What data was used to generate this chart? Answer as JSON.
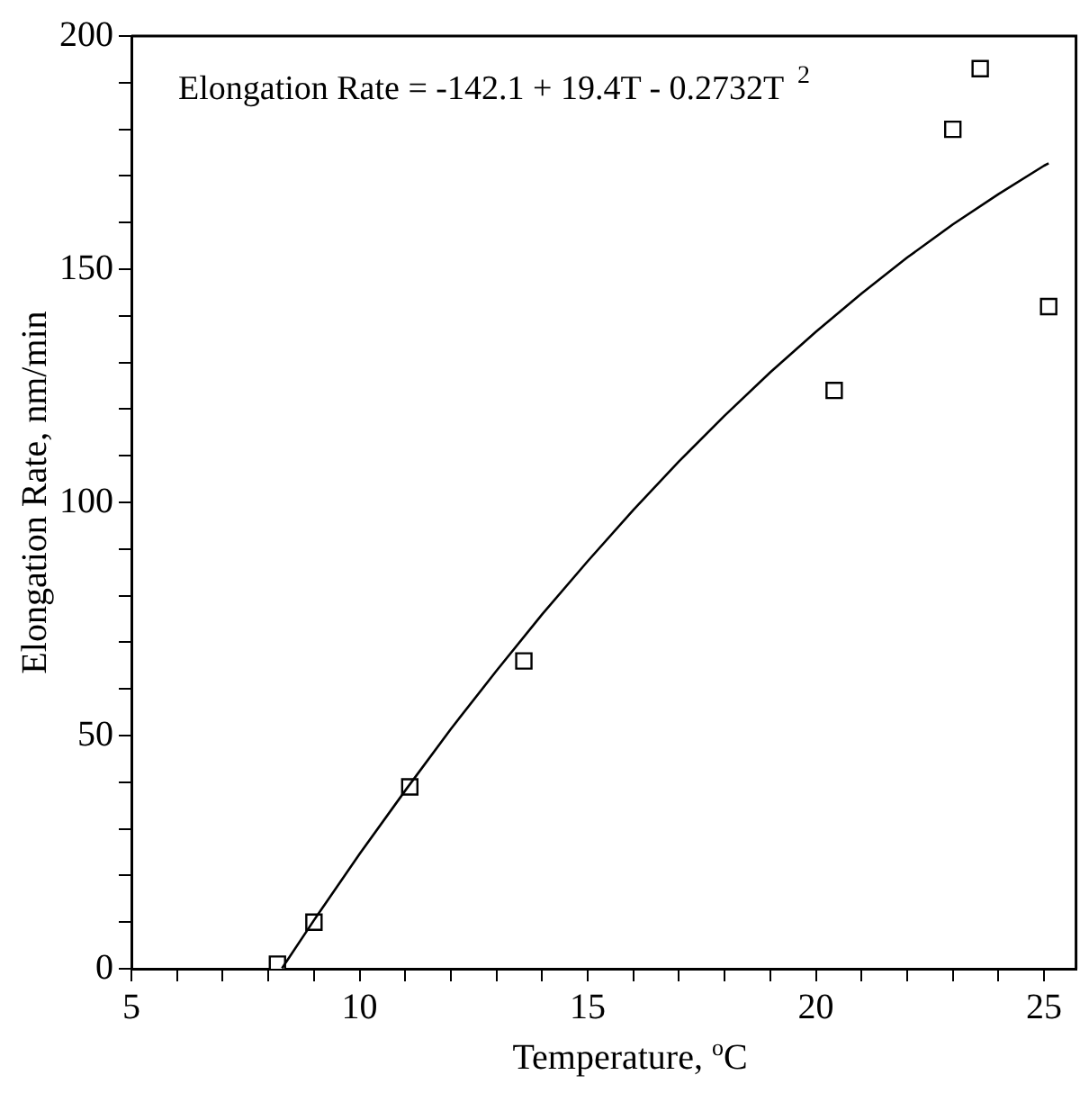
{
  "chart_data": {
    "type": "scatter",
    "xlabel": "Temperature, $^{o}$C",
    "ylabel": "Elongation Rate, nm/min",
    "annotations": [
      "Elongation Rate = -142.1 + 19.4T - 0.2732T$^{2}$"
    ],
    "series": [
      {
        "color": "#000000",
        "marker": "square",
        "x": [
          8.2,
          9.0,
          11.1,
          13.6,
          20.4,
          23.0,
          23.6,
          25.1
        ],
        "values": [
          1,
          10,
          39,
          66,
          124,
          180,
          193,
          142
        ]
      },
      {
        "type": "line",
        "color": "#000000",
        "marker": "none",
        "line_style": "solid",
        "x": [
          8.3,
          9,
          10,
          11,
          12,
          13,
          14,
          15,
          16,
          17,
          18,
          19,
          20,
          21,
          22,
          23,
          24,
          25,
          25.1
        ],
        "values": [
          0.1,
          10.4,
          24.6,
          38.2,
          51.4,
          63.9,
          76.0,
          87.4,
          98.4,
          108.8,
          118.6,
          127.9,
          136.6,
          144.8,
          152.5,
          159.6,
          166.1,
          172.2,
          172.7
        ]
      }
    ],
    "xlim": [
      5,
      25.7
    ],
    "xticks": [
      5,
      {
        "value": 6,
        "label": null
      },
      {
        "value": 7,
        "label": null
      },
      {
        "value": 8,
        "label": null
      },
      {
        "value": 9,
        "label": null
      },
      10,
      {
        "value": 11,
        "label": null
      },
      {
        "value": 12,
        "label": null
      },
      {
        "value": 13,
        "label": null
      },
      {
        "value": 14,
        "label": null
      },
      15,
      {
        "value": 16,
        "label": null
      },
      {
        "value": 17,
        "label": null
      },
      {
        "value": 18,
        "label": null
      },
      {
        "value": 19,
        "label": null
      },
      20,
      {
        "value": 21,
        "label": null
      },
      {
        "value": 22,
        "label": null
      },
      {
        "value": 23,
        "label": null
      },
      {
        "value": 24,
        "label": null
      },
      25
    ],
    "ylim": [
      0,
      200
    ],
    "yticks": [
      0,
      {
        "value": 10,
        "label": null
      },
      {
        "value": 20,
        "label": null
      },
      {
        "value": 30,
        "label": null
      },
      {
        "value": 40,
        "label": null
      },
      50,
      {
        "value": 60,
        "label": null
      },
      {
        "value": 70,
        "label": null
      },
      {
        "value": 80,
        "label": null
      },
      {
        "value": 90,
        "label": null
      },
      100,
      {
        "value": 110,
        "label": null
      },
      {
        "value": 120,
        "label": null
      },
      {
        "value": 130,
        "label": null
      },
      {
        "value": 140,
        "label": null
      },
      150,
      {
        "value": 160,
        "label": null
      },
      {
        "value": 170,
        "label": null
      },
      {
        "value": 180,
        "label": null
      },
      {
        "value": 190,
        "label": null
      },
      200
    ],
    "grid": false,
    "legend": false
  }
}
